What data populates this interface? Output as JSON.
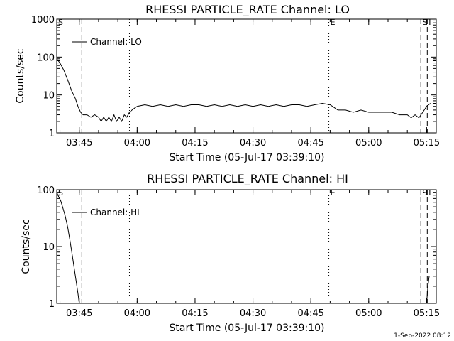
{
  "footer": {
    "timestamp": "1-Sep-2022 08:12"
  },
  "chart_data": [
    {
      "type": "line",
      "title": "RHESSI PARTICLE_RATE Channel: LO",
      "xlabel": "Start Time (05-Jul-17 03:39:10)",
      "ylabel": "Counts/sec",
      "yscale": "log",
      "ylim": [
        1,
        1000
      ],
      "xlim": [
        "03:39:10",
        "05:17:30"
      ],
      "xticks": [
        "03:45",
        "04:00",
        "04:15",
        "04:30",
        "04:45",
        "05:00",
        "05:15"
      ],
      "yticks": [
        "1",
        "10",
        "100",
        "1000"
      ],
      "legend": {
        "label": "Channel: LO",
        "placement": "top-left"
      },
      "markers": [
        {
          "label": "S",
          "time": "03:39:10",
          "style": "none"
        },
        {
          "label": "",
          "time": "03:45:40",
          "style": "dashed"
        },
        {
          "label": "",
          "time": "03:58:00",
          "style": "dotted"
        },
        {
          "label": "E",
          "time": "04:49:40",
          "style": "dotted"
        },
        {
          "label": "S",
          "time": "05:13:30",
          "style": "dashed"
        },
        {
          "label": "I",
          "time": "05:15:10",
          "style": "dashed"
        }
      ],
      "series": [
        {
          "name": "Channel: LO",
          "x": [
            "03:39:10",
            "03:40:00",
            "03:41:00",
            "03:42:00",
            "03:43:00",
            "03:44:00",
            "03:44:40",
            "03:45:20",
            "03:46:00",
            "03:47:00",
            "03:48:00",
            "03:49:00",
            "03:50:00",
            "03:50:40",
            "03:51:20",
            "03:52:00",
            "03:52:40",
            "03:53:20",
            "03:54:00",
            "03:54:40",
            "03:55:20",
            "03:56:00",
            "03:56:40",
            "03:57:20",
            "03:58:00",
            "03:58:40",
            "03:59:20",
            "04:00:00",
            "04:02:00",
            "04:04:00",
            "04:06:00",
            "04:08:00",
            "04:10:00",
            "04:12:00",
            "04:14:00",
            "04:16:00",
            "04:18:00",
            "04:20:00",
            "04:22:00",
            "04:24:00",
            "04:26:00",
            "04:28:00",
            "04:30:00",
            "04:32:00",
            "04:34:00",
            "04:36:00",
            "04:38:00",
            "04:40:00",
            "04:42:00",
            "04:44:00",
            "04:46:00",
            "04:48:00",
            "04:50:00",
            "04:52:00",
            "04:54:00",
            "04:56:00",
            "04:58:00",
            "05:00:00",
            "05:02:00",
            "05:04:00",
            "05:06:00",
            "05:08:00",
            "05:10:00",
            "05:11:00",
            "05:12:00",
            "05:13:00",
            "05:14:00",
            "05:15:00",
            "05:16:00"
          ],
          "values": [
            90,
            70,
            45,
            25,
            13,
            8,
            5,
            3.5,
            3,
            3,
            2.6,
            3,
            2.6,
            2,
            2.6,
            2,
            2.6,
            2,
            3,
            2,
            2.6,
            2,
            3,
            2.6,
            3.5,
            4,
            4.5,
            5,
            5.5,
            5,
            5.5,
            5,
            5.5,
            5,
            5.5,
            5.5,
            5,
            5.5,
            5,
            5.5,
            5,
            5.5,
            5,
            5.5,
            5,
            5.5,
            5,
            5.5,
            5.5,
            5,
            5.5,
            6,
            5.5,
            4,
            4,
            3.5,
            4,
            3.5,
            3.5,
            3.5,
            3.5,
            3,
            3,
            2.5,
            3,
            2.5,
            3.5,
            5,
            6
          ]
        }
      ]
    },
    {
      "type": "line",
      "title": "RHESSI PARTICLE_RATE Channel: HI",
      "xlabel": "Start Time (05-Jul-17 03:39:10)",
      "ylabel": "Counts/sec",
      "yscale": "log",
      "ylim": [
        1,
        100
      ],
      "xlim": [
        "03:39:10",
        "05:17:30"
      ],
      "xticks": [
        "03:45",
        "04:00",
        "04:15",
        "04:30",
        "04:45",
        "05:00",
        "05:15"
      ],
      "yticks": [
        "1",
        "10",
        "100"
      ],
      "legend": {
        "label": "Channel: HI",
        "placement": "top-left"
      },
      "markers": [
        {
          "label": "S",
          "time": "03:39:10",
          "style": "none"
        },
        {
          "label": "",
          "time": "03:45:40",
          "style": "dashed"
        },
        {
          "label": "",
          "time": "03:58:00",
          "style": "dotted"
        },
        {
          "label": "E",
          "time": "04:49:40",
          "style": "dotted"
        },
        {
          "label": "S",
          "time": "05:13:30",
          "style": "dashed"
        },
        {
          "label": "I",
          "time": "05:15:10",
          "style": "dashed"
        }
      ],
      "series": [
        {
          "name": "Channel: HI",
          "x": [
            "03:39:10",
            "03:39:40",
            "03:40:10",
            "03:40:40",
            "03:41:20",
            "03:42:00",
            "03:42:40",
            "03:43:20",
            "03:44:00",
            "03:44:40",
            "03:45:00",
            "05:15:00",
            "05:15:20",
            "05:15:40"
          ],
          "values": [
            90,
            75,
            65,
            50,
            35,
            22,
            12,
            6,
            3,
            1.5,
            1,
            1,
            2,
            3
          ]
        }
      ]
    }
  ]
}
